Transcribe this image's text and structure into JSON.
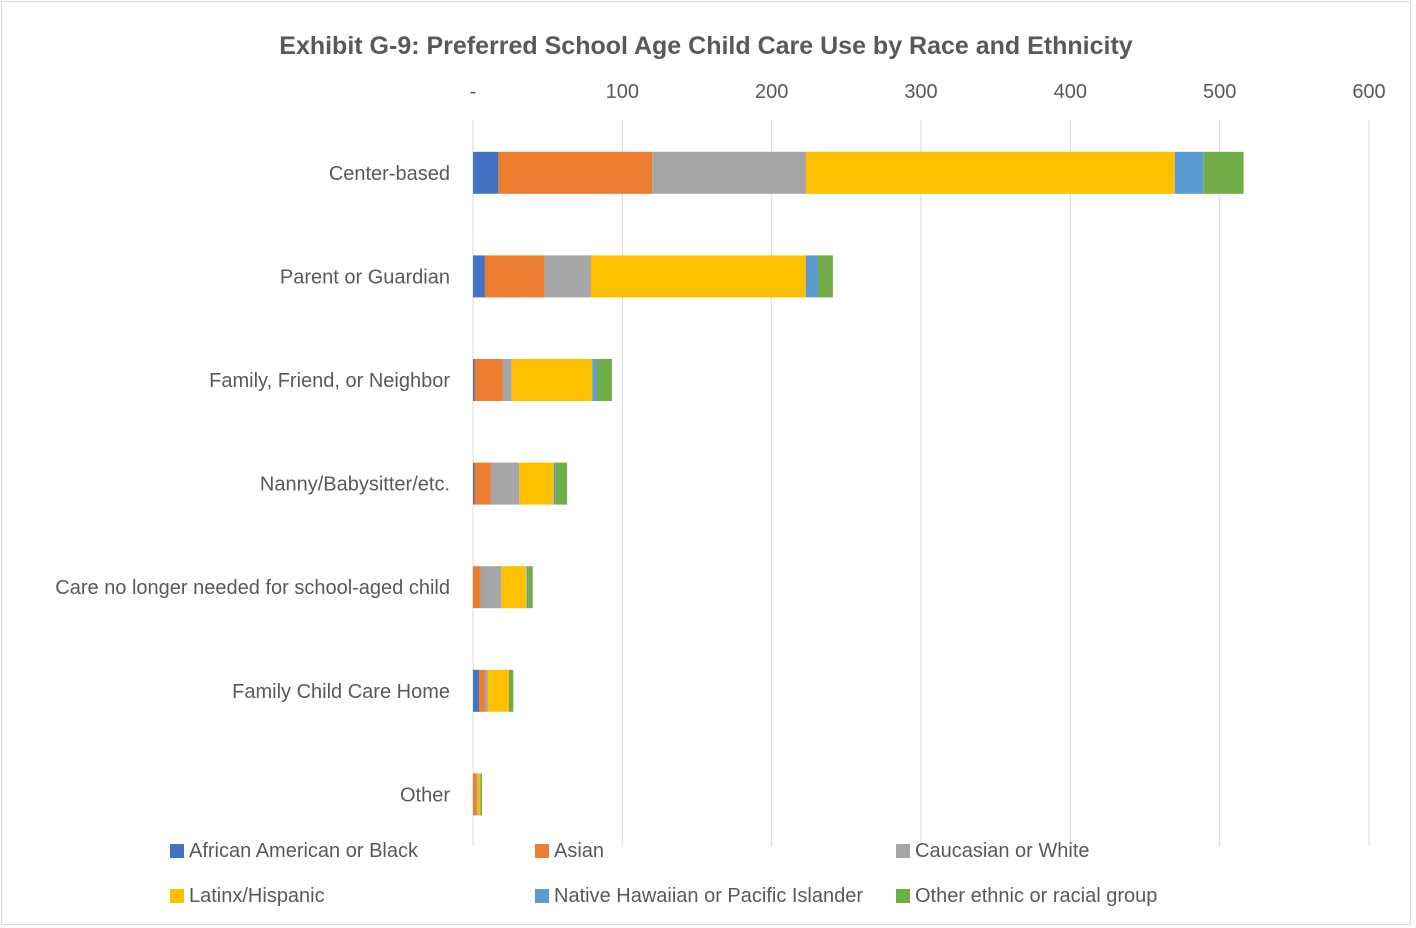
{
  "chart_data": {
    "type": "bar",
    "orientation": "horizontal",
    "stacked": true,
    "title": "Exhibit G-9: Preferred School Age Child Care Use by Race and Ethnicity",
    "xlim": [
      0,
      600
    ],
    "x_ticks": [
      {
        "value": 0,
        "label": "-"
      },
      {
        "value": 100,
        "label": "100"
      },
      {
        "value": 200,
        "label": "200"
      },
      {
        "value": 300,
        "label": "300"
      },
      {
        "value": 400,
        "label": "400"
      },
      {
        "value": 500,
        "label": "500"
      },
      {
        "value": 600,
        "label": "600"
      }
    ],
    "grid": true,
    "legend_position": "bottom",
    "categories": [
      "Center-based",
      "Parent or Guardian",
      "Family, Friend, or Neighbor",
      "Nanny/Babysitter/etc.",
      "Care no longer needed for school-aged child",
      "Family Child Care Home",
      "Other"
    ],
    "series": [
      {
        "name": "African American or Black",
        "color": "#4472c4",
        "values": [
          17,
          8,
          1,
          1,
          0,
          4,
          0
        ]
      },
      {
        "name": "Asian",
        "color": "#ed7d31",
        "values": [
          103,
          40,
          19,
          11,
          5,
          4,
          2
        ]
      },
      {
        "name": "Caucasian or White",
        "color": "#a5a5a5",
        "values": [
          103,
          31,
          6,
          19,
          14,
          2,
          1
        ]
      },
      {
        "name": "Latinx/Hispanic",
        "color": "#ffc000",
        "values": [
          247,
          144,
          54,
          23,
          17,
          14,
          2
        ]
      },
      {
        "name": "Native Hawaiian or Pacific Islander",
        "color": "#5b9bd5",
        "values": [
          19,
          8,
          3,
          1,
          1,
          0,
          0
        ]
      },
      {
        "name": "Other ethnic or racial group",
        "color": "#70ad47",
        "values": [
          27,
          10,
          10,
          8,
          3,
          3,
          1
        ]
      }
    ]
  }
}
